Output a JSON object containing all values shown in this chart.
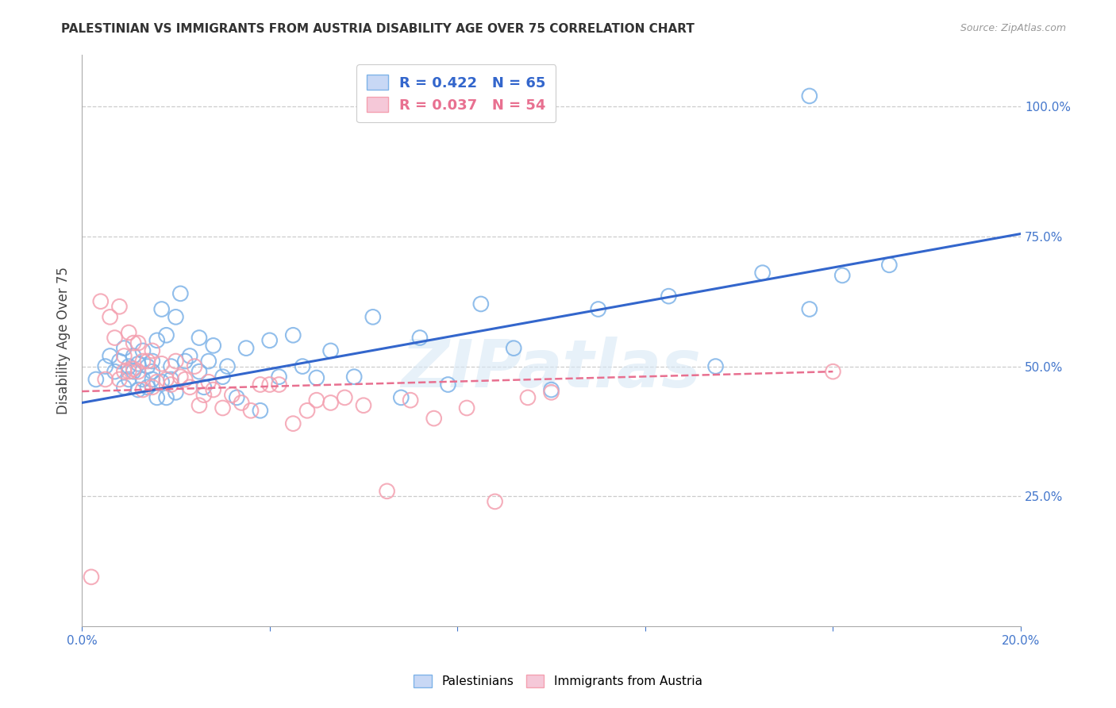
{
  "title": "PALESTINIAN VS IMMIGRANTS FROM AUSTRIA DISABILITY AGE OVER 75 CORRELATION CHART",
  "source": "Source: ZipAtlas.com",
  "ylabel": "Disability Age Over 75",
  "x_min": 0.0,
  "x_max": 0.2,
  "y_min": 0.0,
  "y_max": 1.1,
  "x_ticks": [
    0.0,
    0.04,
    0.08,
    0.12,
    0.16,
    0.2
  ],
  "x_tick_labels": [
    "0.0%",
    "",
    "",
    "",
    "",
    "20.0%"
  ],
  "y_tick_labels_right": [
    "25.0%",
    "50.0%",
    "75.0%",
    "100.0%"
  ],
  "y_tick_positions_right": [
    0.25,
    0.5,
    0.75,
    1.0
  ],
  "blue_color": "#7EB3E8",
  "pink_color": "#F4A0B0",
  "blue_line_color": "#3366CC",
  "pink_line_color": "#E87090",
  "blue_label": "Palestinians",
  "pink_label": "Immigrants from Austria",
  "axis_color": "#4477CC",
  "watermark_color": "#D8E8F5",
  "blue_scatter_x": [
    0.003,
    0.005,
    0.006,
    0.007,
    0.008,
    0.009,
    0.009,
    0.01,
    0.01,
    0.011,
    0.011,
    0.012,
    0.012,
    0.013,
    0.013,
    0.014,
    0.014,
    0.015,
    0.015,
    0.015,
    0.016,
    0.016,
    0.017,
    0.017,
    0.018,
    0.018,
    0.019,
    0.019,
    0.02,
    0.02,
    0.021,
    0.022,
    0.023,
    0.025,
    0.025,
    0.026,
    0.027,
    0.028,
    0.03,
    0.031,
    0.033,
    0.035,
    0.038,
    0.04,
    0.042,
    0.045,
    0.047,
    0.05,
    0.053,
    0.058,
    0.062,
    0.068,
    0.072,
    0.078,
    0.085,
    0.092,
    0.1,
    0.11,
    0.125,
    0.135,
    0.145,
    0.155,
    0.162,
    0.172,
    0.155
  ],
  "blue_scatter_y": [
    0.475,
    0.5,
    0.52,
    0.49,
    0.51,
    0.46,
    0.535,
    0.475,
    0.5,
    0.49,
    0.52,
    0.455,
    0.505,
    0.475,
    0.53,
    0.5,
    0.46,
    0.51,
    0.49,
    0.475,
    0.55,
    0.44,
    0.61,
    0.47,
    0.56,
    0.44,
    0.5,
    0.475,
    0.595,
    0.45,
    0.64,
    0.51,
    0.52,
    0.49,
    0.555,
    0.46,
    0.51,
    0.54,
    0.48,
    0.5,
    0.44,
    0.535,
    0.415,
    0.55,
    0.48,
    0.56,
    0.5,
    0.478,
    0.53,
    0.48,
    0.595,
    0.44,
    0.555,
    0.465,
    0.62,
    0.535,
    0.455,
    0.61,
    0.635,
    0.5,
    0.68,
    0.61,
    0.675,
    0.695,
    1.02
  ],
  "pink_scatter_x": [
    0.002,
    0.004,
    0.005,
    0.006,
    0.007,
    0.008,
    0.008,
    0.009,
    0.009,
    0.01,
    0.01,
    0.011,
    0.011,
    0.012,
    0.012,
    0.013,
    0.013,
    0.014,
    0.015,
    0.015,
    0.016,
    0.017,
    0.018,
    0.019,
    0.02,
    0.021,
    0.022,
    0.023,
    0.024,
    0.025,
    0.026,
    0.027,
    0.028,
    0.03,
    0.032,
    0.034,
    0.036,
    0.038,
    0.04,
    0.042,
    0.045,
    0.048,
    0.05,
    0.053,
    0.056,
    0.06,
    0.065,
    0.07,
    0.075,
    0.082,
    0.088,
    0.095,
    0.1,
    0.16
  ],
  "pink_scatter_y": [
    0.095,
    0.625,
    0.475,
    0.595,
    0.555,
    0.615,
    0.475,
    0.52,
    0.49,
    0.565,
    0.49,
    0.545,
    0.495,
    0.545,
    0.49,
    0.51,
    0.455,
    0.51,
    0.53,
    0.46,
    0.47,
    0.505,
    0.475,
    0.465,
    0.51,
    0.48,
    0.475,
    0.46,
    0.5,
    0.425,
    0.445,
    0.47,
    0.455,
    0.42,
    0.445,
    0.43,
    0.415,
    0.465,
    0.465,
    0.465,
    0.39,
    0.415,
    0.435,
    0.43,
    0.44,
    0.425,
    0.26,
    0.435,
    0.4,
    0.42,
    0.24,
    0.44,
    0.45,
    0.49
  ],
  "blue_line_x": [
    0.0,
    0.2
  ],
  "blue_line_y": [
    0.43,
    0.755
  ],
  "pink_line_x": [
    0.0,
    0.16
  ],
  "pink_line_y": [
    0.452,
    0.49
  ]
}
